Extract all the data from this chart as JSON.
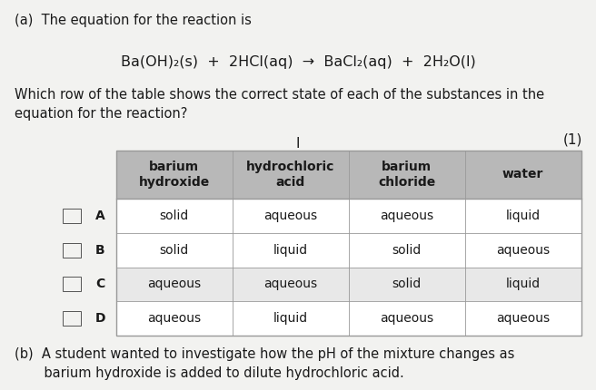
{
  "background_color": "#e8e8e8",
  "page_color": "#f2f2f0",
  "title_a": "(a)  The equation for the reaction is",
  "equation_parts": [
    {
      "text": "Ba(OH)",
      "style": "normal"
    },
    {
      "text": "2",
      "style": "sub"
    },
    {
      "text": "(s)  +  2HCl(aq)  →  BaCl",
      "style": "normal"
    },
    {
      "text": "2",
      "style": "sub"
    },
    {
      "text": "(aq)  +  2H",
      "style": "normal"
    },
    {
      "text": "2",
      "style": "sub"
    },
    {
      "text": "O(l)",
      "style": "normal"
    }
  ],
  "question": "Which row of the table shows the correct state of each of the substances in the\nequation for the reaction?",
  "mark": "(1)",
  "cursor_symbol": "I",
  "col_headers": [
    "barium\nhydroxide",
    "hydrochloric\nacid",
    "barium\nchloride",
    "water"
  ],
  "row_labels": [
    "A",
    "B",
    "C",
    "D"
  ],
  "table_data": [
    [
      "solid",
      "aqueous",
      "aqueous",
      "liquid"
    ],
    [
      "solid",
      "liquid",
      "solid",
      "aqueous"
    ],
    [
      "aqueous",
      "aqueous",
      "solid",
      "liquid"
    ],
    [
      "aqueous",
      "liquid",
      "aqueous",
      "aqueous"
    ]
  ],
  "header_bg": "#b8b8b8",
  "row_bg_white": "#ffffff",
  "row_bg_gray": "#e8e8e8",
  "table_border_color": "#999999",
  "text_color": "#1a1a1a",
  "footer_b": "(b)  A student wanted to investigate how the pH of the mixture changes as\n       barium hydroxide is added to dilute hydrochloric acid.",
  "font_size_body": 10.5,
  "font_size_equation": 11.5,
  "font_size_sub": 7.5,
  "font_size_header": 10,
  "font_size_table": 10,
  "font_size_mark": 11,
  "font_size_footer": 10.5
}
